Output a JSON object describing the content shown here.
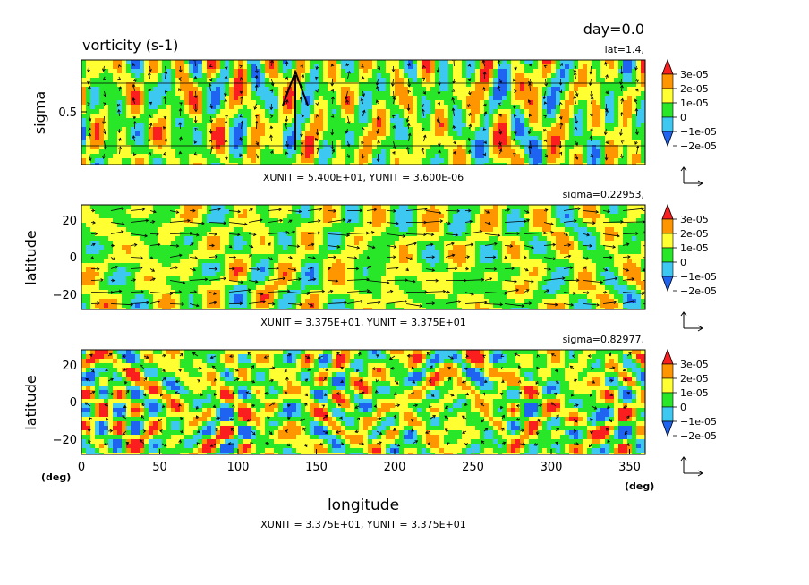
{
  "header": {
    "title": "vorticity (s-1)",
    "day": "day=0.0"
  },
  "colorbar": {
    "labels": [
      "3e-05",
      "2e-05",
      "1e-05",
      "0",
      "−1e-05",
      "−2e-05"
    ],
    "colors": [
      "#1e64f0",
      "#3cc8f0",
      "#28e628",
      "#ffff32",
      "#ff9600",
      "#fa1e1e"
    ]
  },
  "chart_data": [
    {
      "type": "heatmap",
      "panel": "sigma-longitude section",
      "annotation": "lat=1.4,",
      "ylabel": "sigma",
      "yticks": [
        "0.5"
      ],
      "xlim": [
        0,
        360
      ],
      "ylim": [
        0,
        1
      ],
      "unit_note": "XUNIT = 5.400E+01, YUNIT = 3.600E-06",
      "levels": [
        -2e-05,
        -1e-05,
        0,
        1e-05,
        2e-05,
        3e-05
      ]
    },
    {
      "type": "heatmap",
      "panel": "latitude-longitude section",
      "annotation": "sigma=0.22953,",
      "ylabel": "latitude",
      "yticks": [
        "20",
        "0",
        "−20"
      ],
      "xlim": [
        0,
        360
      ],
      "ylim": [
        -28,
        28
      ],
      "unit_note": "XUNIT = 3.375E+01, YUNIT = 3.375E+01",
      "levels": [
        -2e-05,
        -1e-05,
        0,
        1e-05,
        2e-05,
        3e-05
      ]
    },
    {
      "type": "heatmap",
      "panel": "latitude-longitude section",
      "annotation": "sigma=0.82977,",
      "ylabel": "latitude",
      "yticks": [
        "20",
        "0",
        "−20"
      ],
      "xlabel": "longitude",
      "xticks": [
        "0",
        "50",
        "100",
        "150",
        "200",
        "250",
        "300",
        "350"
      ],
      "xunit": "(deg)",
      "yunit": "(deg)",
      "xlim": [
        0,
        360
      ],
      "ylim": [
        -28,
        28
      ],
      "unit_note": "XUNIT = 3.375E+01, YUNIT = 3.375E+01",
      "levels": [
        -2e-05,
        -1e-05,
        0,
        1e-05,
        2e-05,
        3e-05
      ]
    }
  ]
}
